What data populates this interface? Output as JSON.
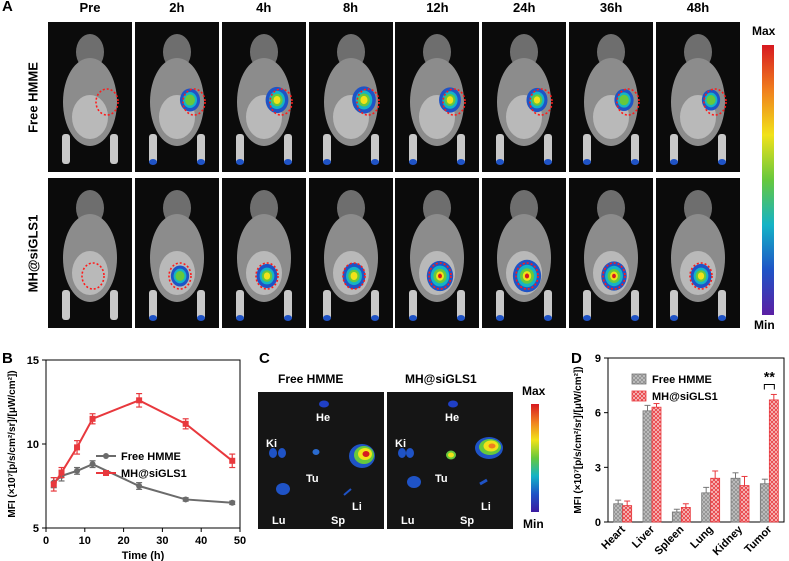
{
  "panel_a": {
    "letter": "A",
    "timepoints": [
      "Pre",
      "2h",
      "4h",
      "8h",
      "12h",
      "24h",
      "36h",
      "48h"
    ],
    "rows": [
      "Free HMME",
      "MH@siGLS1"
    ],
    "colorbar": {
      "max_label": "Max",
      "min_label": "Min"
    },
    "intensity": [
      [
        0,
        0.45,
        0.6,
        0.65,
        0.55,
        0.5,
        0.4,
        0.35
      ],
      [
        0,
        0.35,
        0.5,
        0.6,
        0.8,
        0.9,
        0.75,
        0.5
      ]
    ]
  },
  "panel_c": {
    "letter": "C",
    "groups": [
      {
        "title": "Free HMME",
        "organs": [
          "He",
          "Ki",
          "Tu",
          "Li",
          "Lu",
          "Sp"
        ]
      },
      {
        "title": "MH@siGLS1",
        "organs": [
          "He",
          "Ki",
          "Tu",
          "Li",
          "Lu",
          "Sp"
        ]
      }
    ],
    "colorbar": {
      "max_label": "Max",
      "min_label": "Min"
    }
  },
  "chart_data": [
    {
      "panel": "B",
      "type": "line",
      "xlabel": "Time (h)",
      "ylabel": "MFI (×10⁷[p/s/cm²/sr]/[μW/cm²])",
      "xlim": [
        0,
        50
      ],
      "ylim": [
        5,
        15
      ],
      "xticks": [
        0,
        10,
        20,
        30,
        40,
        50
      ],
      "yticks": [
        5,
        10,
        15
      ],
      "legend": "bottom-right",
      "series": [
        {
          "name": "Free HMME",
          "color": "#6b6b6b",
          "x": [
            2,
            4,
            8,
            12,
            24,
            36,
            48
          ],
          "y": [
            7.7,
            8.1,
            8.4,
            8.8,
            7.5,
            6.7,
            6.5
          ],
          "err": [
            0.3,
            0.3,
            0.2,
            0.2,
            0.2,
            0.1,
            0.1
          ]
        },
        {
          "name": "MH@siGLS1",
          "color": "#e8383d",
          "x": [
            2,
            4,
            8,
            12,
            24,
            36,
            48
          ],
          "y": [
            7.6,
            8.3,
            9.8,
            11.5,
            12.6,
            11.2,
            9.0
          ],
          "err": [
            0.4,
            0.3,
            0.4,
            0.3,
            0.4,
            0.3,
            0.4
          ]
        }
      ]
    },
    {
      "panel": "D",
      "type": "bar",
      "xlabel": "",
      "ylabel": "MFI (×10⁷[p/s/cm²/sr]/[μW/cm²])",
      "ylim": [
        0,
        9
      ],
      "yticks": [
        0,
        3,
        6,
        9
      ],
      "legend": "top-right",
      "categories": [
        "Heart",
        "Liver",
        "Spleen",
        "Lung",
        "Kidney",
        "Tumor"
      ],
      "series": [
        {
          "name": "Free HMME",
          "color": "#a8a8a8",
          "values": [
            1.0,
            6.1,
            0.55,
            1.6,
            2.4,
            2.1
          ],
          "err": [
            0.2,
            0.3,
            0.15,
            0.3,
            0.3,
            0.25
          ]
        },
        {
          "name": "MH@siGLS1",
          "color": "#f3a3a3",
          "values": [
            0.9,
            6.3,
            0.8,
            2.4,
            2.0,
            6.7
          ],
          "err": [
            0.25,
            0.2,
            0.2,
            0.4,
            0.5,
            0.3
          ]
        }
      ],
      "annotation": "**"
    }
  ]
}
